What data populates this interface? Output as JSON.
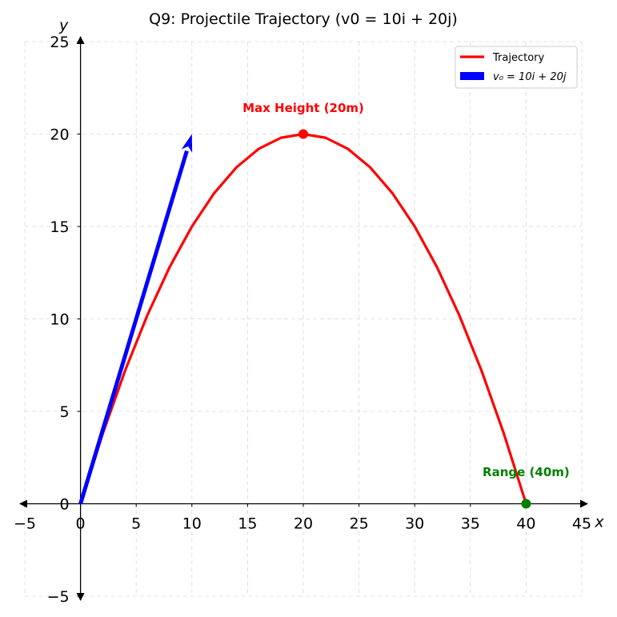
{
  "chart_data": {
    "type": "line",
    "title": "Q9: Projectile Trajectory (v0 = 10i + 20j)",
    "xlabel": "x",
    "ylabel": "y",
    "xlim": [
      -5,
      45
    ],
    "ylim": [
      -5,
      25
    ],
    "xticks": [
      -5,
      0,
      5,
      10,
      15,
      20,
      25,
      30,
      35,
      40,
      45
    ],
    "yticks": [
      -5,
      0,
      5,
      10,
      15,
      20,
      25
    ],
    "xtick_labels": [
      "−5",
      "0",
      "5",
      "10",
      "15",
      "20",
      "25",
      "30",
      "35",
      "40",
      "45"
    ],
    "ytick_labels": [
      "−5",
      "0",
      "5",
      "10",
      "15",
      "20",
      "25"
    ],
    "grid": true,
    "legend_position": "top-right",
    "series": [
      {
        "name": "Trajectory",
        "kind": "line",
        "color": "#ff0000",
        "x": [
          0,
          2,
          4,
          6,
          8,
          10,
          12,
          14,
          16,
          18,
          20,
          22,
          24,
          26,
          28,
          30,
          32,
          34,
          36,
          38,
          40
        ],
        "y": [
          0,
          3.8,
          7.2,
          10.2,
          12.8,
          15,
          16.8,
          18.2,
          19.2,
          19.8,
          20,
          19.8,
          19.2,
          18.2,
          16.8,
          15,
          12.8,
          10.2,
          7.2,
          3.8,
          0
        ]
      },
      {
        "name": "v₀ = 10i + 20j",
        "kind": "vector",
        "color": "#0000ff",
        "origin": [
          0,
          0
        ],
        "vector": [
          10,
          20
        ]
      }
    ],
    "points": [
      {
        "x": 20,
        "y": 20,
        "color": "#ff0000"
      },
      {
        "x": 40,
        "y": 0,
        "color": "#008000"
      }
    ],
    "annotations": [
      {
        "text": "Max Height (20m)",
        "x": 20,
        "y": 21.2,
        "color": "#ff0000"
      },
      {
        "text": "Range (40m)",
        "x": 40,
        "y": 1.5,
        "color": "#008000"
      }
    ]
  }
}
